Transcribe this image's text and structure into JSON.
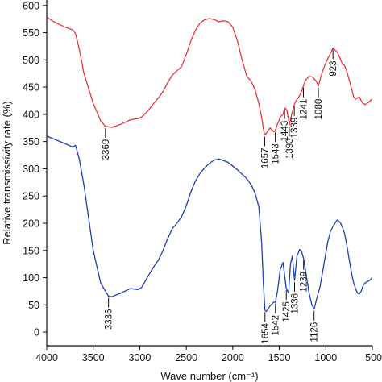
{
  "chart_data": {
    "type": "line",
    "xlabel": "Wave number (cm⁻¹)",
    "ylabel": "Relative transmissivity rate (%)",
    "xlim": [
      4000,
      500
    ],
    "ylim": [
      -25,
      610
    ],
    "xticks": [
      "4000",
      "3500",
      "3000",
      "2500",
      "2000",
      "1500",
      "1000",
      "500"
    ],
    "yticks": [
      "0",
      "50",
      "100",
      "150",
      "200",
      "250",
      "300",
      "350",
      "400",
      "450",
      "500",
      "550",
      "600"
    ],
    "grid": false,
    "legend": "none",
    "series": [
      {
        "color": "#e8363d",
        "x": [
          4000,
          3900,
          3800,
          3720,
          3690,
          3650,
          3600,
          3500,
          3420,
          3369,
          3300,
          3200,
          3100,
          3020,
          2980,
          2920,
          2850,
          2800,
          2750,
          2700,
          2650,
          2600,
          2550,
          2500,
          2450,
          2400,
          2350,
          2300,
          2250,
          2200,
          2150,
          2100,
          2050,
          2000,
          1950,
          1900,
          1850,
          1800,
          1760,
          1720,
          1690,
          1670,
          1657,
          1640,
          1600,
          1560,
          1543,
          1520,
          1490,
          1460,
          1443,
          1420,
          1400,
          1393,
          1370,
          1339,
          1320,
          1290,
          1260,
          1241,
          1220,
          1180,
          1140,
          1100,
          1080,
          1060,
          1030,
          1000,
          970,
          950,
          923,
          900,
          880,
          860,
          840,
          820,
          800,
          780,
          760,
          740,
          720,
          700,
          680,
          660,
          640,
          620,
          600,
          580,
          560,
          540,
          520,
          505
        ],
        "y": [
          578,
          568,
          560,
          555,
          548,
          520,
          475,
          420,
          388,
          378,
          376,
          382,
          390,
          392,
          395,
          405,
          420,
          430,
          442,
          458,
          472,
          480,
          488,
          510,
          535,
          555,
          568,
          574,
          576,
          574,
          570,
          572,
          570,
          560,
          535,
          500,
          470,
          460,
          445,
          420,
          395,
          372,
          362,
          365,
          375,
          368,
          370,
          382,
          395,
          400,
          412,
          408,
          390,
          380,
          398,
          418,
          425,
          432,
          442,
          452,
          462,
          470,
          468,
          460,
          452,
          465,
          482,
          495,
          505,
          512,
          522,
          518,
          515,
          508,
          500,
          492,
          490,
          482,
          470,
          458,
          445,
          432,
          428,
          430,
          432,
          425,
          420,
          418,
          420,
          422,
          425,
          428
        ]
      },
      {
        "color": "#1f3fb5",
        "x": [
          4000,
          3900,
          3800,
          3720,
          3690,
          3650,
          3600,
          3500,
          3420,
          3336,
          3300,
          3200,
          3100,
          3020,
          2980,
          2920,
          2850,
          2800,
          2750,
          2700,
          2650,
          2600,
          2550,
          2500,
          2450,
          2400,
          2350,
          2300,
          2250,
          2200,
          2150,
          2100,
          2050,
          2000,
          1950,
          1900,
          1850,
          1800,
          1760,
          1720,
          1690,
          1670,
          1654,
          1640,
          1600,
          1560,
          1542,
          1520,
          1490,
          1460,
          1425,
          1400,
          1380,
          1360,
          1336,
          1310,
          1280,
          1260,
          1239,
          1220,
          1180,
          1150,
          1126,
          1100,
          1060,
          1020,
          980,
          950,
          920,
          900,
          880,
          860,
          840,
          820,
          800,
          780,
          760,
          740,
          720,
          700,
          680,
          660,
          640,
          620,
          600,
          580,
          560,
          540,
          520,
          505
        ],
        "y": [
          360,
          353,
          346,
          340,
          343,
          318,
          270,
          150,
          90,
          66,
          65,
          72,
          80,
          78,
          82,
          100,
          120,
          132,
          150,
          172,
          190,
          200,
          212,
          232,
          258,
          278,
          292,
          302,
          310,
          316,
          318,
          315,
          312,
          305,
          298,
          290,
          282,
          270,
          255,
          230,
          165,
          85,
          40,
          38,
          48,
          55,
          55,
          75,
          115,
          128,
          80,
          72,
          125,
          140,
          95,
          140,
          152,
          148,
          135,
          115,
          72,
          50,
          42,
          60,
          85,
          125,
          165,
          185,
          195,
          200,
          206,
          204,
          200,
          192,
          182,
          165,
          145,
          125,
          105,
          90,
          80,
          72,
          70,
          75,
          85,
          90,
          92,
          94,
          96,
          100
        ]
      }
    ],
    "annotations": [
      {
        "label": "3369",
        "x": 3369,
        "y": 378
      },
      {
        "label": "1657",
        "x": 1657,
        "y": 362
      },
      {
        "label": "1543",
        "x": 1543,
        "y": 370
      },
      {
        "label": "1443",
        "x": 1443,
        "y": 412
      },
      {
        "label": "1393",
        "x": 1393,
        "y": 380
      },
      {
        "label": "1339",
        "x": 1339,
        "y": 418
      },
      {
        "label": "1241",
        "x": 1241,
        "y": 452
      },
      {
        "label": "1080",
        "x": 1080,
        "y": 452
      },
      {
        "label": "923",
        "x": 923,
        "y": 522
      },
      {
        "label": "3336",
        "x": 3336,
        "y": 66
      },
      {
        "label": "1654",
        "x": 1654,
        "y": 40
      },
      {
        "label": "1542",
        "x": 1542,
        "y": 55
      },
      {
        "label": "1425",
        "x": 1425,
        "y": 80
      },
      {
        "label": "1336",
        "x": 1336,
        "y": 95
      },
      {
        "label": "1239",
        "x": 1239,
        "y": 135
      },
      {
        "label": "1126",
        "x": 1126,
        "y": 42
      }
    ]
  }
}
